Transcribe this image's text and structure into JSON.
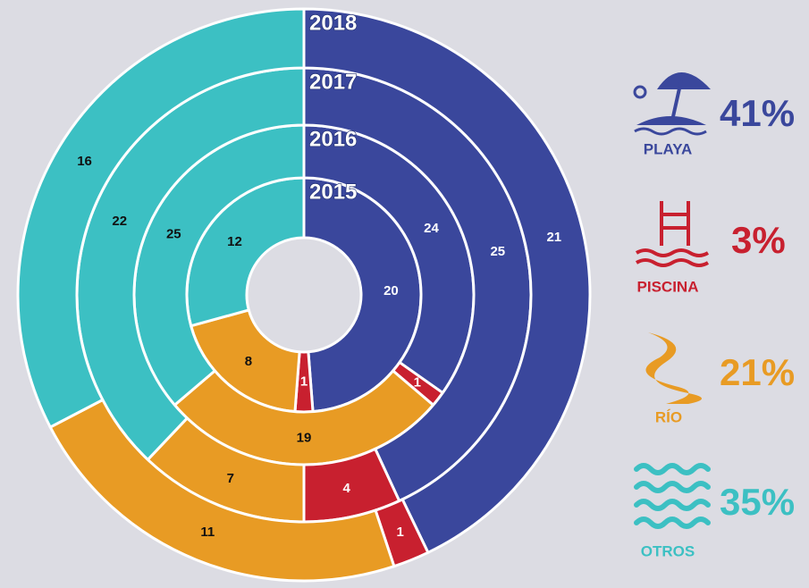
{
  "chart_data": {
    "type": "donut",
    "categories": [
      "PLAYA",
      "PISCINA",
      "RÍO",
      "OTROS"
    ],
    "colors": [
      "#3a479c",
      "#c8202f",
      "#e89b24",
      "#3cc0c3"
    ],
    "label_colors": [
      "#ffffff",
      "#ffffff",
      "#111111",
      "#111111"
    ],
    "series": [
      {
        "name": "2015",
        "values": [
          20,
          1,
          8,
          12
        ]
      },
      {
        "name": "2016",
        "values": [
          24,
          1,
          19,
          25
        ]
      },
      {
        "name": "2017",
        "values": [
          25,
          4,
          7,
          22
        ]
      },
      {
        "name": "2018",
        "values": [
          21,
          1,
          11,
          16
        ]
      }
    ],
    "legend": {
      "values": [
        41,
        3,
        21,
        35
      ],
      "value_labels": [
        "41%",
        "3%",
        "21%",
        "35%"
      ]
    }
  }
}
